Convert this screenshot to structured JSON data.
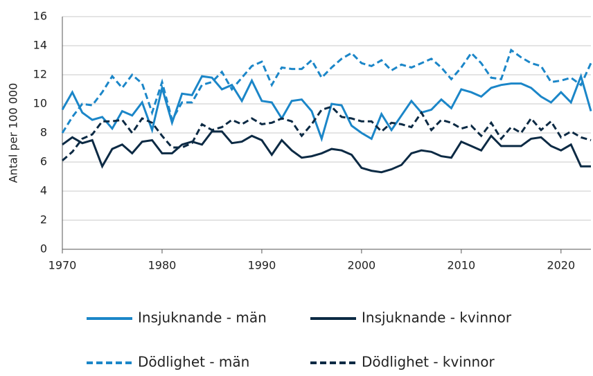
{
  "chart_data": {
    "type": "line",
    "y_label": "Antal per 100 000",
    "x": [
      1970,
      1971,
      1972,
      1973,
      1974,
      1975,
      1976,
      1977,
      1978,
      1979,
      1980,
      1981,
      1982,
      1983,
      1984,
      1985,
      1986,
      1987,
      1988,
      1989,
      1990,
      1991,
      1992,
      1993,
      1994,
      1995,
      1996,
      1997,
      1998,
      1999,
      2000,
      2001,
      2002,
      2003,
      2004,
      2005,
      2006,
      2007,
      2008,
      2009,
      2010,
      2011,
      2012,
      2013,
      2014,
      2015,
      2016,
      2017,
      2018,
      2019,
      2020,
      2021,
      2022,
      2023
    ],
    "series": [
      {
        "name": "Insjuknande - män",
        "color": "#1b86c8",
        "line_style": "solid",
        "values": [
          9.6,
          10.8,
          9.4,
          8.9,
          9.1,
          8.3,
          9.5,
          9.2,
          10.1,
          8.2,
          11.1,
          8.7,
          10.7,
          10.6,
          11.9,
          11.8,
          11.0,
          11.3,
          10.2,
          11.6,
          10.2,
          10.1,
          9.0,
          10.2,
          10.3,
          9.5,
          7.6,
          10.0,
          9.9,
          8.5,
          8.0,
          7.6,
          9.3,
          8.2,
          9.2,
          10.2,
          9.4,
          9.6,
          10.3,
          9.7,
          11.0,
          10.8,
          10.5,
          11.1,
          11.3,
          11.4,
          11.4,
          11.1,
          10.5,
          10.1,
          10.8,
          10.1,
          11.9,
          9.5
        ]
      },
      {
        "name": "Insjuknande - kvinnor",
        "color": "#0c2a44",
        "line_style": "solid",
        "values": [
          7.2,
          7.7,
          7.3,
          7.5,
          5.7,
          6.9,
          7.2,
          6.6,
          7.4,
          7.5,
          6.6,
          6.6,
          7.2,
          7.4,
          7.2,
          8.1,
          8.1,
          7.3,
          7.4,
          7.8,
          7.5,
          6.5,
          7.5,
          6.8,
          6.3,
          6.4,
          6.6,
          6.9,
          6.8,
          6.5,
          5.6,
          5.4,
          5.3,
          5.5,
          5.8,
          6.6,
          6.8,
          6.7,
          6.4,
          6.3,
          7.4,
          7.1,
          6.8,
          7.8,
          7.1,
          7.1,
          7.1,
          7.6,
          7.7,
          7.1,
          6.8,
          7.2,
          5.7,
          5.7
        ]
      },
      {
        "name": "Dödlighet - män",
        "color": "#1b86c8",
        "line_style": "dashed",
        "values": [
          8.0,
          9.1,
          10.0,
          9.9,
          10.8,
          11.9,
          11.1,
          12.0,
          11.4,
          9.4,
          11.5,
          8.9,
          10.1,
          10.1,
          11.3,
          11.5,
          12.2,
          11.0,
          11.8,
          12.6,
          12.9,
          11.3,
          12.5,
          12.4,
          12.4,
          13.0,
          11.8,
          12.5,
          13.1,
          13.5,
          12.8,
          12.6,
          13.0,
          12.3,
          12.7,
          12.5,
          12.8,
          13.1,
          12.5,
          11.7,
          12.5,
          13.5,
          12.8,
          11.8,
          11.7,
          13.7,
          13.2,
          12.8,
          12.6,
          11.5,
          11.6,
          11.8,
          11.3,
          12.8
        ]
      },
      {
        "name": "Dödlighet - kvinnor",
        "color": "#0c2a44",
        "line_style": "dashed",
        "values": [
          6.1,
          6.7,
          7.6,
          7.9,
          8.8,
          8.8,
          8.9,
          8.0,
          9.0,
          8.7,
          7.8,
          7.0,
          7.0,
          7.3,
          8.6,
          8.2,
          8.4,
          8.9,
          8.6,
          9.0,
          8.6,
          8.7,
          9.0,
          8.8,
          7.8,
          8.6,
          9.6,
          9.8,
          9.1,
          9.0,
          8.8,
          8.8,
          8.1,
          8.7,
          8.6,
          8.4,
          9.4,
          8.2,
          8.9,
          8.7,
          8.3,
          8.5,
          7.8,
          8.7,
          7.6,
          8.4,
          8.0,
          9.0,
          8.2,
          8.8,
          7.7,
          8.1,
          7.7,
          7.5
        ]
      }
    ],
    "xlim": [
      1970,
      2023
    ],
    "xticks": [
      1970,
      1980,
      1990,
      2000,
      2010,
      2020
    ],
    "ylim": [
      0,
      16
    ],
    "yticks": [
      0,
      2,
      4,
      6,
      8,
      10,
      12,
      14,
      16
    ],
    "grid": true
  }
}
